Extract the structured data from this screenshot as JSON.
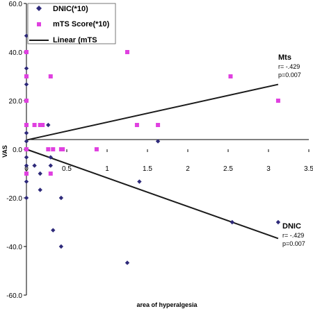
{
  "chart_data": {
    "type": "scatter",
    "xlabel": "area of hyperalgesia",
    "ylabel": "VAS",
    "xlim": [
      0,
      3.5
    ],
    "ylim": [
      -60,
      60
    ],
    "x_ticks": [
      "0",
      "0.5",
      "1",
      "1.5",
      "2",
      "2.5",
      "3",
      "3.5"
    ],
    "y_ticks": [
      "60.0",
      "40.0",
      "20.0",
      "0.0",
      "-20.0",
      "-40.0",
      "-60.0"
    ],
    "grid": false,
    "legend_position": "top-left",
    "legend": {
      "dnic": "DNIC(*10)",
      "mts": "mTS Score(*10)",
      "linear": "Linear (mTS"
    },
    "colors": {
      "dnic": "#2e2a7a",
      "mts": "#e040e0",
      "line": "#1a1a1a"
    },
    "series": [
      {
        "name": "DNIC(*10)",
        "marker": "diamond",
        "points": [
          [
            0,
            46.7
          ],
          [
            0,
            40
          ],
          [
            0,
            33.3
          ],
          [
            0,
            30
          ],
          [
            0,
            26.7
          ],
          [
            0,
            20
          ],
          [
            0,
            10
          ],
          [
            0,
            6.7
          ],
          [
            0,
            3.3
          ],
          [
            0,
            0
          ],
          [
            0,
            0
          ],
          [
            0,
            -3.3
          ],
          [
            0,
            -6.7
          ],
          [
            0,
            -13.3
          ],
          [
            0,
            -20
          ],
          [
            0.1,
            -6.7
          ],
          [
            0.17,
            -10
          ],
          [
            0.17,
            -16.7
          ],
          [
            0.27,
            10
          ],
          [
            0.3,
            -3.3
          ],
          [
            0.3,
            -6.7
          ],
          [
            0.33,
            -33.3
          ],
          [
            0.43,
            -20
          ],
          [
            0.43,
            -40
          ],
          [
            1.25,
            -46.7
          ],
          [
            1.4,
            -13.3
          ],
          [
            1.63,
            3.3
          ],
          [
            2.55,
            -30
          ],
          [
            3.12,
            -30
          ]
        ]
      },
      {
        "name": "mTS Score(*10)",
        "marker": "square",
        "points": [
          [
            0,
            40
          ],
          [
            0,
            30
          ],
          [
            0,
            20
          ],
          [
            0,
            10
          ],
          [
            0,
            0
          ],
          [
            0,
            -10
          ],
          [
            0.1,
            10
          ],
          [
            0.17,
            10
          ],
          [
            0.2,
            10
          ],
          [
            0.27,
            0
          ],
          [
            0.33,
            0
          ],
          [
            0.3,
            30
          ],
          [
            0.3,
            -10
          ],
          [
            0.43,
            0
          ],
          [
            0.45,
            0
          ],
          [
            0.87,
            0
          ],
          [
            1.25,
            40
          ],
          [
            1.37,
            10
          ],
          [
            1.63,
            10
          ],
          [
            2.53,
            30
          ],
          [
            3.12,
            20
          ]
        ]
      }
    ],
    "trendlines": [
      {
        "name": "Mts",
        "from": [
          0,
          3.8
        ],
        "to": [
          3.12,
          26.7
        ]
      },
      {
        "name": "DNIC",
        "from": [
          0,
          0
        ],
        "to": [
          3.12,
          -36.7
        ]
      }
    ],
    "annotations": [
      {
        "title": "Mts",
        "r": "r= -.429",
        "p": "p=0.007"
      },
      {
        "title": "DNIC",
        "r": "r= -.429",
        "p": "p=0.007"
      }
    ]
  }
}
